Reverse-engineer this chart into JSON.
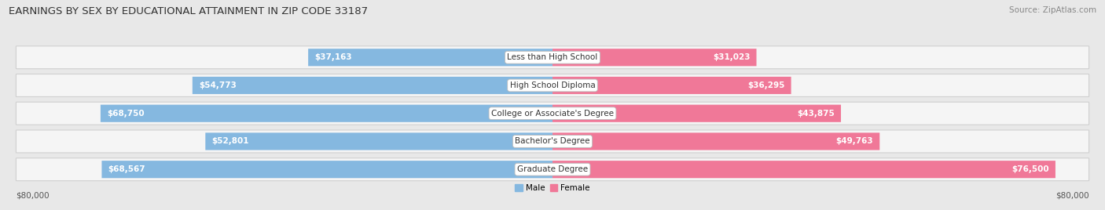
{
  "title": "EARNINGS BY SEX BY EDUCATIONAL ATTAINMENT IN ZIP CODE 33187",
  "source": "Source: ZipAtlas.com",
  "categories": [
    "Less than High School",
    "High School Diploma",
    "College or Associate's Degree",
    "Bachelor's Degree",
    "Graduate Degree"
  ],
  "male_values": [
    37163,
    54773,
    68750,
    52801,
    68567
  ],
  "female_values": [
    31023,
    36295,
    43875,
    49763,
    76500
  ],
  "max_val": 80000,
  "male_color": "#85b8e0",
  "female_color": "#f07898",
  "bg_color": "#e8e8e8",
  "row_bg_color": "#f5f5f5",
  "title_fontsize": 9.5,
  "source_fontsize": 7.5,
  "bar_label_fontsize": 7.5,
  "category_fontsize": 7.5,
  "axis_label_fontsize": 7.5
}
